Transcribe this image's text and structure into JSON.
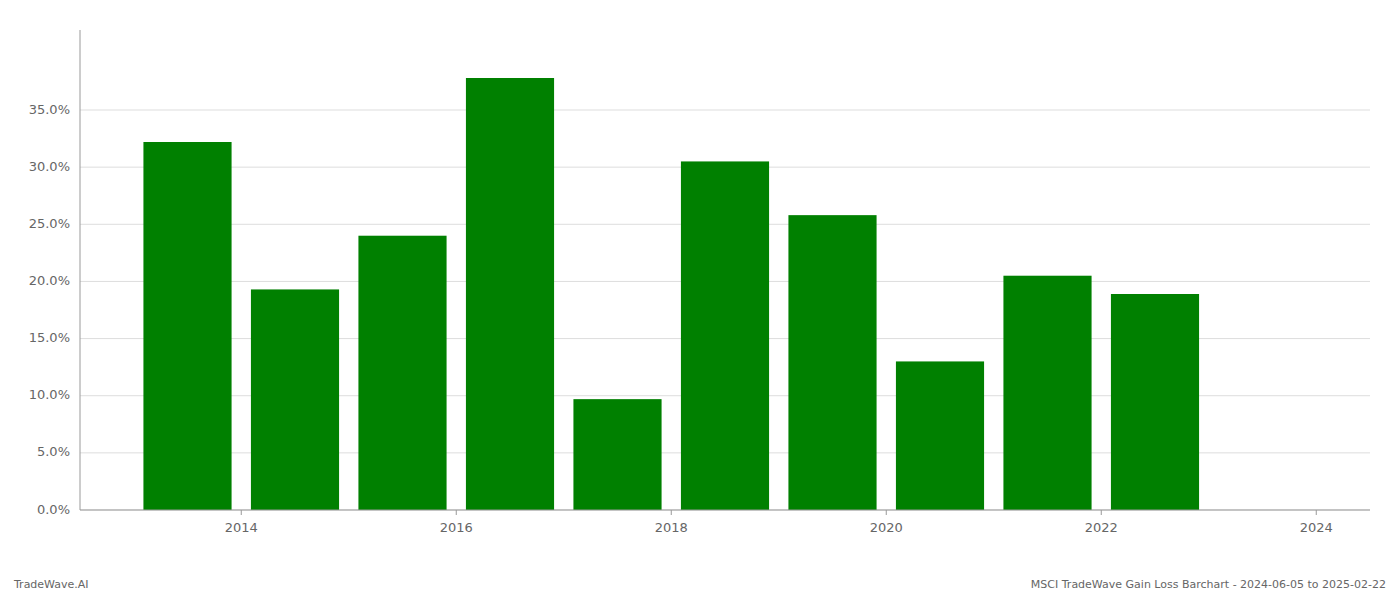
{
  "chart_data": {
    "type": "bar",
    "x": [
      2013.5,
      2014.5,
      2015.5,
      2016.5,
      2017.5,
      2018.5,
      2019.5,
      2020.5,
      2021.5,
      2022.5
    ],
    "values": [
      0.322,
      0.193,
      0.24,
      0.378,
      0.097,
      0.305,
      0.258,
      0.13,
      0.205,
      0.189
    ],
    "color": "#008000",
    "xlim": [
      2012.5,
      2024.5
    ],
    "xticks": [
      2014,
      2016,
      2018,
      2020,
      2022,
      2024
    ],
    "ylim": [
      0.0,
      0.42
    ],
    "yticks": [
      {
        "value": 0.0,
        "label": "0.0%"
      },
      {
        "value": 0.05,
        "label": "5.0%"
      },
      {
        "value": 0.1,
        "label": "10.0%"
      },
      {
        "value": 0.15,
        "label": "15.0%"
      },
      {
        "value": 0.2,
        "label": "20.0%"
      },
      {
        "value": 0.25,
        "label": "25.0%"
      },
      {
        "value": 0.3,
        "label": "30.0%"
      },
      {
        "value": 0.35,
        "label": "35.0%"
      }
    ],
    "grid": true,
    "annotations": [
      "TradeWave.AI",
      "MSCI TradeWave Gain Loss Barchart - 2024-06-05 to 2025-02-22"
    ]
  }
}
